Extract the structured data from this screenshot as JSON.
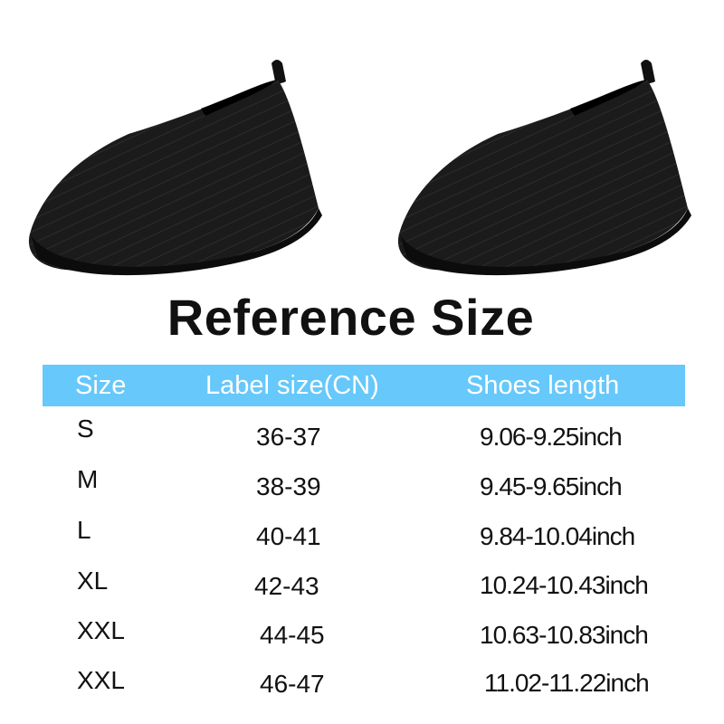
{
  "title": "Reference Size",
  "colors": {
    "header_bg": "#66c8fb",
    "header_text": "#ffffff",
    "text": "#111111"
  },
  "table": {
    "headers": [
      "Size",
      "Label size(CN)",
      "Shoes length"
    ],
    "rows": [
      {
        "size": "S",
        "label": "36-37",
        "length": "9.06-9.25inch"
      },
      {
        "size": "M",
        "label": "38-39",
        "length": "9.45-9.65inch"
      },
      {
        "size": "L",
        "label": "40-41",
        "length": "9.84-10.04inch"
      },
      {
        "size": "XL",
        "label": "42-43",
        "length": "10.24-10.43inch"
      },
      {
        "size": "XXL",
        "label": "44-45",
        "length": "10.63-10.83inch"
      },
      {
        "size": "XXL",
        "label": "46-47",
        "length": "11.02-11.22inch"
      }
    ]
  }
}
